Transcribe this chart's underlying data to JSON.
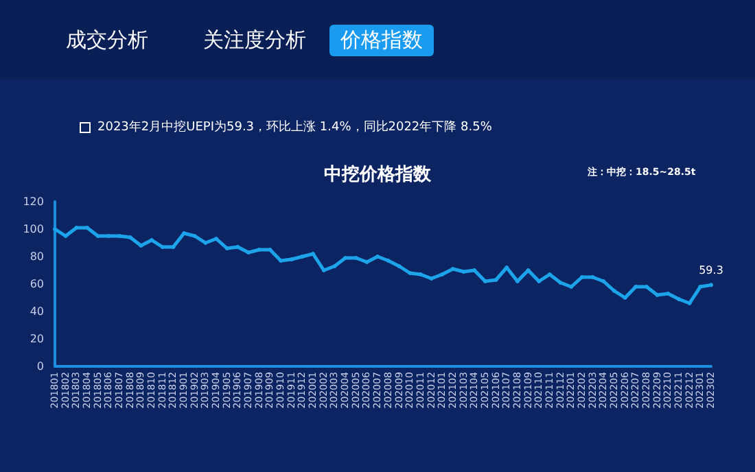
{
  "chart_data": {
    "type": "line",
    "title": "中挖价格指数",
    "subtitle": "2023年2月中挖UEPI为59.3，环比上涨 1.4%，同比2022年下降 8.5%",
    "annotations": [
      "成交分析",
      "关注度分析",
      "价格指数",
      "注：中挖：18.5~28.5t"
    ],
    "categories": [
      "201801",
      "201802",
      "201803",
      "201804",
      "201805",
      "201806",
      "201807",
      "201808",
      "201809",
      "201810",
      "201811",
      "201812",
      "201901",
      "201902",
      "201903",
      "201904",
      "201905",
      "201906",
      "201907",
      "201908",
      "201909",
      "201910",
      "201911",
      "201912",
      "202001",
      "202002",
      "202003",
      "202004",
      "202005",
      "202006",
      "202007",
      "202008",
      "202009",
      "202010",
      "202011",
      "202012",
      "202101",
      "202102",
      "202103",
      "202104",
      "202105",
      "202106",
      "202107",
      "202108",
      "202109",
      "202110",
      "202111",
      "202112",
      "202201",
      "202202",
      "202203",
      "202204",
      "202205",
      "202206",
      "202207",
      "202208",
      "202209",
      "202210",
      "202211",
      "202212",
      "202301",
      "202302"
    ],
    "series": [
      {
        "color": "#1ca3ea",
        "values": [
          100,
          95,
          101,
          101,
          95,
          95,
          95,
          94,
          88,
          92,
          87,
          87,
          97,
          95,
          90,
          93,
          86,
          87,
          83,
          85,
          85,
          77,
          78,
          80,
          82,
          70,
          73,
          79,
          79,
          76,
          80,
          77,
          73,
          68,
          67,
          64,
          67,
          71,
          69,
          70,
          62,
          63,
          72,
          62,
          70,
          62,
          67,
          61,
          58,
          65,
          65,
          62,
          55,
          50,
          58,
          58,
          52,
          53,
          49,
          46,
          58,
          59.3
        ],
        "value_labels": [
          null,
          null,
          null,
          null,
          null,
          null,
          null,
          null,
          null,
          null,
          null,
          null,
          null,
          null,
          null,
          null,
          null,
          null,
          null,
          null,
          null,
          null,
          null,
          null,
          null,
          null,
          null,
          null,
          null,
          null,
          null,
          null,
          null,
          null,
          null,
          null,
          null,
          null,
          null,
          null,
          null,
          null,
          null,
          null,
          null,
          null,
          null,
          null,
          null,
          null,
          null,
          null,
          null,
          null,
          null,
          null,
          null,
          null,
          null,
          null,
          null,
          "59.3"
        ]
      }
    ],
    "ylim": [
      0,
      120
    ],
    "yticks": [
      0,
      20,
      40,
      60,
      80,
      100,
      120
    ],
    "grid": false,
    "marker": "circle",
    "line_style": "solid"
  }
}
